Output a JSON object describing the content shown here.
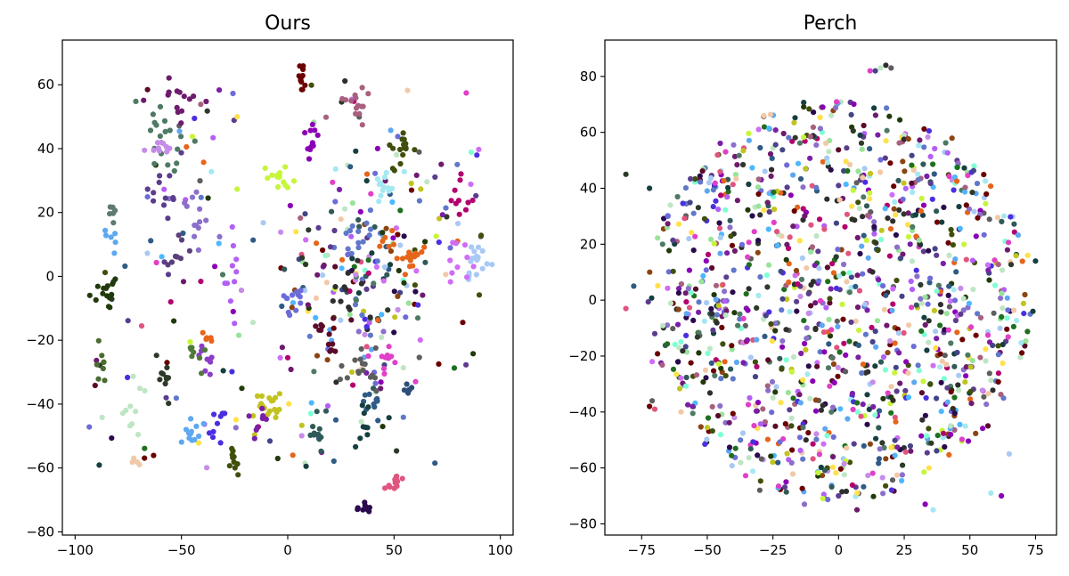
{
  "chart_data": [
    {
      "type": "scatter",
      "title": "Ours",
      "xlabel": "",
      "ylabel": "",
      "xlim": [
        -106,
        106
      ],
      "ylim": [
        -81,
        74
      ],
      "xticks": [
        -100,
        -50,
        0,
        50,
        100
      ],
      "yticks": [
        -80,
        -60,
        -40,
        -20,
        0,
        20,
        40,
        60
      ],
      "xtick_labels": [
        "−100",
        "−50",
        "0",
        "50",
        "100"
      ],
      "ytick_labels": [
        "−80",
        "−60",
        "−40",
        "−20",
        "0",
        "20",
        "40",
        "60"
      ],
      "grid": false,
      "clusters": [
        {
          "color": "#6B0000",
          "center": [
            6,
            62
          ],
          "spread": [
            1.5,
            3
          ],
          "n": 12
        },
        {
          "color": "#A8607F",
          "center": [
            33,
            55
          ],
          "spread": [
            3,
            2.5
          ],
          "n": 14
        },
        {
          "color": "#8B00B5",
          "center": [
            12,
            42
          ],
          "spread": [
            2,
            3
          ],
          "n": 12
        },
        {
          "color": "#3F4F0C",
          "center": [
            53,
            38
          ],
          "spread": [
            3,
            4
          ],
          "n": 16
        },
        {
          "color": "#6E1A6E",
          "center": [
            -50,
            55
          ],
          "spread": [
            5,
            4
          ],
          "n": 14
        },
        {
          "color": "#4E7A63",
          "center": [
            -60,
            45
          ],
          "spread": [
            5,
            8
          ],
          "n": 18
        },
        {
          "color": "#C68CE8",
          "center": [
            -62,
            38
          ],
          "spread": [
            3,
            4
          ],
          "n": 10
        },
        {
          "color": "#C7F53A",
          "center": [
            -4,
            31
          ],
          "spread": [
            3,
            2
          ],
          "n": 14
        },
        {
          "color": "#A4E9F2",
          "center": [
            45,
            28
          ],
          "spread": [
            3,
            2
          ],
          "n": 12
        },
        {
          "color": "#8B6FCB",
          "center": [
            -45,
            18
          ],
          "spread": [
            5,
            6
          ],
          "n": 14
        },
        {
          "color": "#5B3D8E",
          "center": [
            -58,
            20
          ],
          "spread": [
            6,
            8
          ],
          "n": 14
        },
        {
          "color": "#B30070",
          "center": [
            82,
            25
          ],
          "spread": [
            3,
            3
          ],
          "n": 10
        },
        {
          "color": "#E5651A",
          "center": [
            58,
            7
          ],
          "spread": [
            4,
            3
          ],
          "n": 16
        },
        {
          "color": "#E5651A",
          "center": [
            46,
            12
          ],
          "spread": [
            2,
            2
          ],
          "n": 6
        },
        {
          "color": "#A9C9F5",
          "center": [
            90,
            6
          ],
          "spread": [
            4,
            4
          ],
          "n": 18
        },
        {
          "color": "#D06DF5",
          "center": [
            80,
            5
          ],
          "spread": [
            4,
            3
          ],
          "n": 10
        },
        {
          "color": "#6078C9",
          "center": [
            32,
            15
          ],
          "spread": [
            6,
            5
          ],
          "n": 14
        },
        {
          "color": "#5E5E5E",
          "center": [
            36,
            -30
          ],
          "spread": [
            5,
            5
          ],
          "n": 16
        },
        {
          "color": "#E040C8",
          "center": [
            47,
            -26
          ],
          "spread": [
            3,
            2
          ],
          "n": 10
        },
        {
          "color": "#2F5B86",
          "center": [
            40,
            -40
          ],
          "spread": [
            4,
            3
          ],
          "n": 10
        },
        {
          "color": "#163F3F",
          "center": [
            35,
            -45
          ],
          "spread": [
            2,
            3
          ],
          "n": 8
        },
        {
          "color": "#2C4F78",
          "center": [
            57,
            -35
          ],
          "spread": [
            1.5,
            2
          ],
          "n": 6
        },
        {
          "color": "#E0557F",
          "center": [
            50,
            -65
          ],
          "spread": [
            3,
            2
          ],
          "n": 12
        },
        {
          "color": "#2A0A4E",
          "center": [
            37,
            -72
          ],
          "spread": [
            1.5,
            1.5
          ],
          "n": 10
        },
        {
          "color": "#2F5A58",
          "center": [
            14,
            -49
          ],
          "spread": [
            2,
            3
          ],
          "n": 12
        },
        {
          "color": "#C2C320",
          "center": [
            -8,
            -41
          ],
          "spread": [
            4,
            3
          ],
          "n": 20
        },
        {
          "color": "#7A1FA6",
          "center": [
            -14,
            -45
          ],
          "spread": [
            2,
            4
          ],
          "n": 8
        },
        {
          "color": "#3F4F0C",
          "center": [
            -25,
            -58
          ],
          "spread": [
            1.5,
            2
          ],
          "n": 10
        },
        {
          "color": "#5EA8F0",
          "center": [
            -45,
            -50
          ],
          "spread": [
            3,
            2
          ],
          "n": 12
        },
        {
          "color": "#4A2FE0",
          "center": [
            -33,
            -47
          ],
          "spread": [
            3,
            3
          ],
          "n": 10
        },
        {
          "color": "#8B3CC8",
          "center": [
            -38,
            -27
          ],
          "spread": [
            3,
            3
          ],
          "n": 8
        },
        {
          "color": "#4F7A3A",
          "center": [
            -42,
            -25
          ],
          "spread": [
            3,
            3
          ],
          "n": 8
        },
        {
          "color": "#2D3A2A",
          "center": [
            -58,
            -32
          ],
          "spread": [
            3,
            4
          ],
          "n": 10
        },
        {
          "color": "#213A0B",
          "center": [
            -86,
            -5
          ],
          "spread": [
            4,
            3
          ],
          "n": 14
        },
        {
          "color": "#4A6C30",
          "center": [
            -88,
            -27
          ],
          "spread": [
            2,
            4
          ],
          "n": 8
        },
        {
          "color": "#BFE6C4",
          "center": [
            -73,
            -45
          ],
          "spread": [
            3,
            8
          ],
          "n": 10
        },
        {
          "color": "#F1C9A8",
          "center": [
            -72,
            -58
          ],
          "spread": [
            1.5,
            1.5
          ],
          "n": 5
        },
        {
          "color": "#5EA8F0",
          "center": [
            -82,
            12
          ],
          "spread": [
            2,
            3
          ],
          "n": 6
        },
        {
          "color": "#5E7A72",
          "center": [
            -83,
            18
          ],
          "spread": [
            1,
            3
          ],
          "n": 6
        },
        {
          "color": "#5A0A2A",
          "center": [
            17,
            -20
          ],
          "spread": [
            3,
            3
          ],
          "n": 12
        },
        {
          "color": "#6C6CD8",
          "center": [
            3,
            -8
          ],
          "spread": [
            4,
            4
          ],
          "n": 12
        },
        {
          "color": "#2E2E2E",
          "center": [
            28,
            -5
          ],
          "spread": [
            6,
            4
          ],
          "n": 10
        },
        {
          "color": "#5A3F7A",
          "center": [
            -50,
            5
          ],
          "spread": [
            5,
            4
          ],
          "n": 8
        },
        {
          "color": "#B35EF5",
          "center": [
            -26,
            2
          ],
          "spread": [
            2,
            8
          ],
          "n": 10
        },
        {
          "color": "#E8651A",
          "center": [
            -37,
            -20
          ],
          "spread": [
            2,
            2
          ],
          "n": 5
        }
      ],
      "noise": {
        "n": 340,
        "xrange": [
          -95,
          95
        ],
        "yrange": [
          -60,
          60
        ]
      }
    },
    {
      "type": "scatter",
      "title": "Perch",
      "xlabel": "",
      "ylabel": "",
      "xlim": [
        -89,
        83
      ],
      "ylim": [
        -84,
        93
      ],
      "xticks": [
        -75,
        -50,
        -25,
        0,
        25,
        50,
        75
      ],
      "yticks": [
        -80,
        -60,
        -40,
        -20,
        0,
        20,
        40,
        60,
        80
      ],
      "xtick_labels": [
        "−75",
        "−50",
        "−25",
        "0",
        "25",
        "50",
        "75"
      ],
      "ytick_labels": [
        "−80",
        "−60",
        "−40",
        "−20",
        "0",
        "20",
        "40",
        "60",
        "80"
      ],
      "grid": false,
      "cloud": {
        "n": 1300,
        "center": [
          0,
          0
        ],
        "radius_x": 73,
        "radius_y": 72
      },
      "extra_points": [
        [
          14,
          82
        ],
        [
          16,
          83
        ],
        [
          18,
          84
        ],
        [
          20,
          83
        ],
        [
          12,
          82
        ],
        [
          -81,
          45
        ],
        [
          -81,
          -3
        ],
        [
          -72,
          -38
        ],
        [
          -71,
          -22
        ],
        [
          -70,
          -12
        ],
        [
          75,
          14
        ],
        [
          73,
          -5
        ],
        [
          72,
          16
        ],
        [
          -72,
          40
        ],
        [
          -65,
          30
        ],
        [
          -67,
          20
        ],
        [
          -78,
          5
        ],
        [
          74,
          -4
        ],
        [
          -70,
          -39
        ],
        [
          -71,
          -36
        ],
        [
          33,
          -73
        ],
        [
          36,
          -75
        ],
        [
          7,
          -75
        ],
        [
          0,
          -70
        ],
        [
          -13,
          -73
        ],
        [
          58,
          -69
        ],
        [
          62,
          -70
        ],
        [
          65,
          -55
        ],
        [
          -30,
          -68
        ],
        [
          -20,
          -65
        ]
      ]
    }
  ],
  "palette": [
    "#6B0000",
    "#A8607F",
    "#8B00B5",
    "#3F4F0C",
    "#6E1A6E",
    "#4E7A63",
    "#C68CE8",
    "#C7F53A",
    "#A4E9F2",
    "#8B6FCB",
    "#5B3D8E",
    "#B30070",
    "#E5651A",
    "#A9C9F5",
    "#D06DF5",
    "#6078C9",
    "#5E5E5E",
    "#E040C8",
    "#2F5B86",
    "#163F3F",
    "#E0557F",
    "#2A0A4E",
    "#2F5A58",
    "#C2C320",
    "#7A1FA6",
    "#5EA8F0",
    "#4A2FE0",
    "#2D3A2A",
    "#213A0B",
    "#BFE6C4",
    "#F1C9A8",
    "#5A0A2A",
    "#6C6CD8",
    "#2E2E2E",
    "#B35EF5",
    "#9AE39A",
    "#1F6F1F",
    "#7FFFD4",
    "#FFE14A",
    "#4DB8FF",
    "#8B4513",
    "#444488"
  ]
}
